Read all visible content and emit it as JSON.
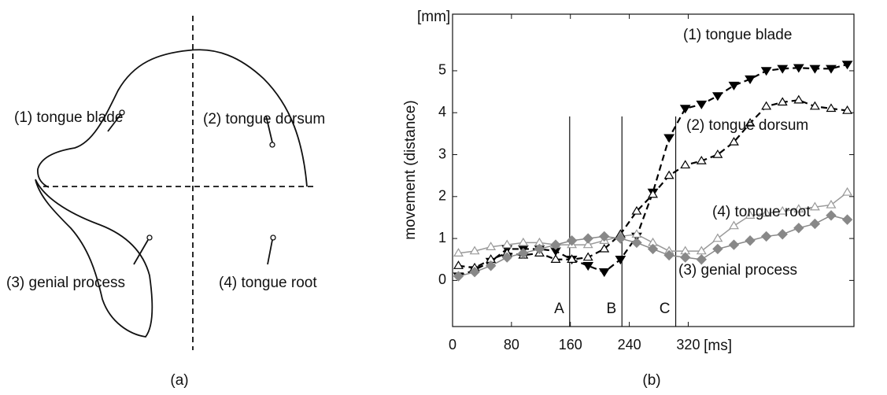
{
  "diagram": {
    "labels": [
      "(1) tongue blade",
      "(2) tongue dorsum",
      "(3) genial process",
      "(4) tongue root"
    ],
    "caption": "(a)"
  },
  "chart_data": {
    "type": "line",
    "caption": "(b)",
    "y_label": "movement (distance)",
    "y_unit": "[mm]",
    "x_unit": "[ms]",
    "xlim": [
      0,
      545
    ],
    "xticks": [
      0,
      80,
      160,
      240,
      320
    ],
    "ylim": [
      -1.1,
      6.35
    ],
    "yticks": [
      0,
      1,
      2,
      3,
      4,
      5
    ],
    "x": [
      8,
      30,
      52,
      74,
      96,
      118,
      140,
      162,
      184,
      206,
      228,
      250,
      272,
      294,
      316,
      338,
      360,
      382,
      404,
      426,
      448,
      470,
      492,
      514,
      536
    ],
    "markers": [
      {
        "label": "A",
        "x": 159
      },
      {
        "label": "B",
        "x": 230
      },
      {
        "label": "C",
        "x": 303
      }
    ],
    "series": [
      {
        "name": "(1) tongue blade",
        "color": "#000000",
        "line_style": "dashed",
        "marker": "triangle-down-filled",
        "values": [
          0.1,
          0.25,
          0.45,
          0.75,
          0.75,
          0.75,
          0.7,
          0.5,
          0.35,
          0.2,
          0.5,
          1.05,
          2.1,
          3.4,
          4.1,
          4.2,
          4.4,
          4.65,
          4.8,
          5.0,
          5.05,
          5.07,
          5.05,
          5.05,
          5.15
        ]
      },
      {
        "name": "(2) tongue dorsum",
        "color": "#000000",
        "line_style": "dashed",
        "marker": "triangle-open",
        "values": [
          0.35,
          0.3,
          0.5,
          0.65,
          0.6,
          0.65,
          0.5,
          0.5,
          0.55,
          0.75,
          1.1,
          1.65,
          2.05,
          2.5,
          2.75,
          2.85,
          3.0,
          3.3,
          3.75,
          4.15,
          4.25,
          4.3,
          4.15,
          4.1,
          4.05
        ]
      },
      {
        "name": "(4) tongue root",
        "color": "#999999",
        "line_style": "solid",
        "marker": "triangle-open",
        "values": [
          0.65,
          0.7,
          0.8,
          0.85,
          0.9,
          0.9,
          0.85,
          0.85,
          0.85,
          0.95,
          1.05,
          1.1,
          0.9,
          0.7,
          0.7,
          0.7,
          1.0,
          1.3,
          1.55,
          1.6,
          1.65,
          1.7,
          1.75,
          1.8,
          2.1
        ]
      },
      {
        "name": "(3) genial process",
        "color": "#888888",
        "line_style": "solid",
        "marker": "diamond-filled",
        "values": [
          0.1,
          0.2,
          0.35,
          0.55,
          0.65,
          0.75,
          0.85,
          0.95,
          1.0,
          1.05,
          1.0,
          0.9,
          0.75,
          0.6,
          0.55,
          0.5,
          0.75,
          0.85,
          0.95,
          1.05,
          1.1,
          1.25,
          1.35,
          1.55,
          1.45
        ]
      }
    ]
  }
}
